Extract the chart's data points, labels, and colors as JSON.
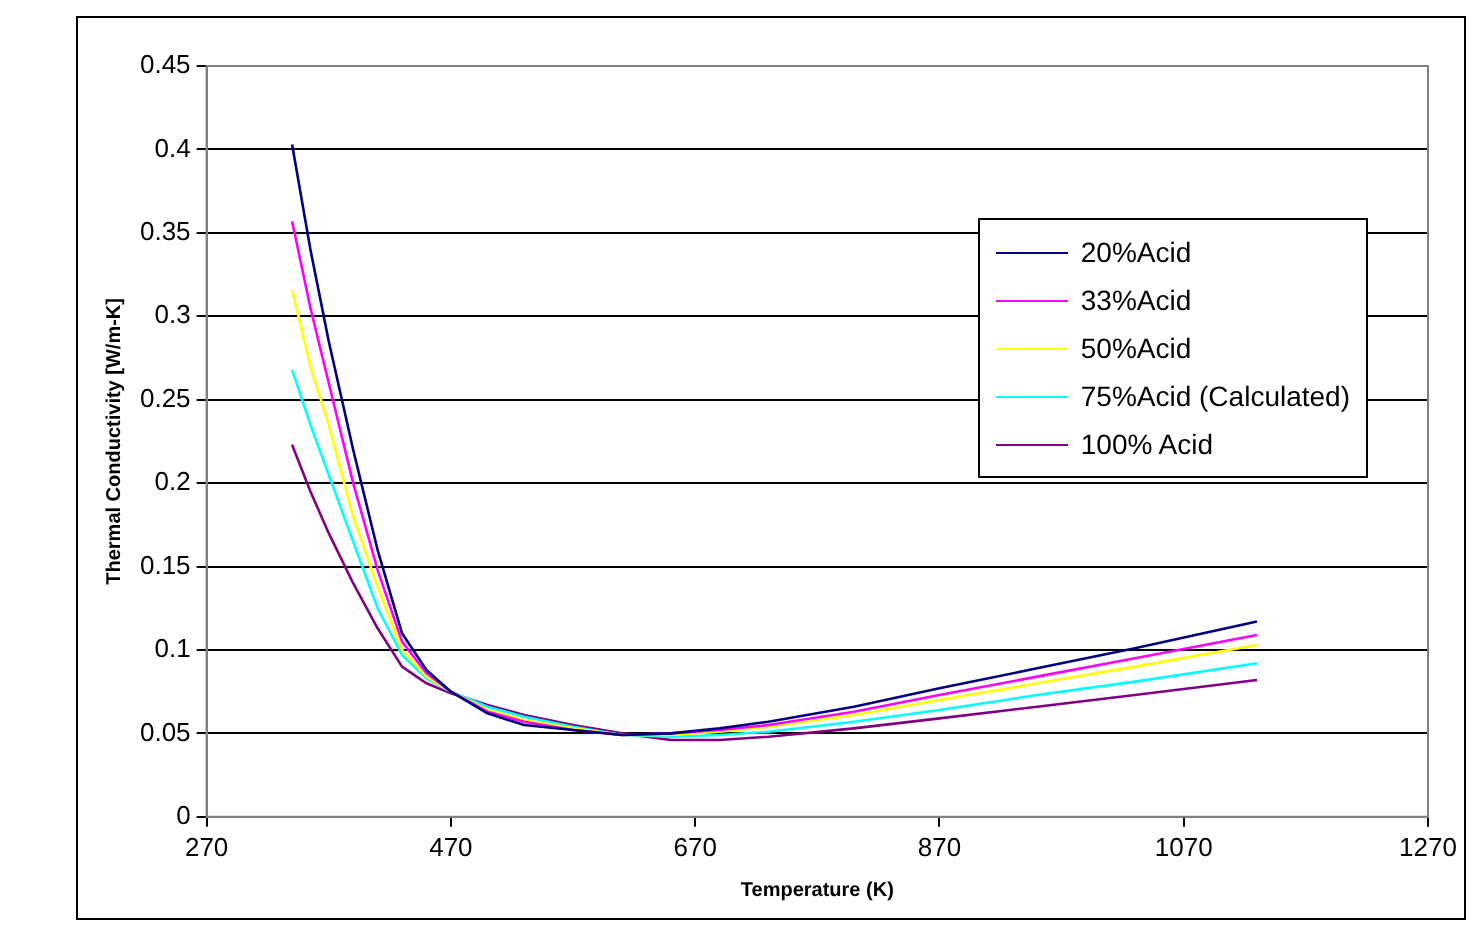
{
  "chart_data": {
    "type": "line",
    "xlabel": "Temperature (K)",
    "ylabel": "Thermal Conductivity [W/m-K]",
    "x": [
      340,
      355,
      370,
      390,
      410,
      430,
      450,
      470,
      500,
      530,
      570,
      610,
      650,
      690,
      730,
      800,
      870,
      950,
      1030,
      1130
    ],
    "series": [
      {
        "name": "20%Acid",
        "color": "#000080",
        "values": [
          0.403,
          0.34,
          0.285,
          0.22,
          0.16,
          0.11,
          0.088,
          0.075,
          0.062,
          0.055,
          0.052,
          0.049,
          0.05,
          0.053,
          0.057,
          0.066,
          0.077,
          0.089,
          0.101,
          0.117
        ]
      },
      {
        "name": "33%Acid",
        "color": "#ff00ff",
        "values": [
          0.357,
          0.305,
          0.26,
          0.2,
          0.148,
          0.105,
          0.086,
          0.075,
          0.063,
          0.057,
          0.052,
          0.049,
          0.05,
          0.052,
          0.055,
          0.063,
          0.073,
          0.084,
          0.095,
          0.109
        ]
      },
      {
        "name": "50%Acid",
        "color": "#ffff00",
        "values": [
          0.316,
          0.27,
          0.235,
          0.18,
          0.138,
          0.1,
          0.084,
          0.075,
          0.064,
          0.058,
          0.053,
          0.049,
          0.049,
          0.051,
          0.054,
          0.061,
          0.07,
          0.08,
          0.09,
          0.103
        ]
      },
      {
        "name": "75%Acid (Calculated)",
        "color": "#00ffff",
        "values": [
          0.268,
          0.235,
          0.205,
          0.165,
          0.125,
          0.097,
          0.083,
          0.075,
          0.066,
          0.06,
          0.054,
          0.049,
          0.048,
          0.049,
          0.051,
          0.057,
          0.064,
          0.073,
          0.081,
          0.092
        ]
      },
      {
        "name": "100% Acid",
        "color": "#800080",
        "values": [
          0.223,
          0.195,
          0.17,
          0.14,
          0.113,
          0.09,
          0.08,
          0.074,
          0.067,
          0.061,
          0.055,
          0.05,
          0.046,
          0.046,
          0.048,
          0.053,
          0.059,
          0.066,
          0.073,
          0.082
        ]
      }
    ],
    "xlim": [
      270,
      1270
    ],
    "xticks": [
      270,
      470,
      670,
      870,
      1070,
      1270
    ],
    "ylim": [
      0,
      0.45
    ],
    "yticks": [
      0,
      0.05,
      0.1,
      0.15,
      0.2,
      0.25,
      0.3,
      0.35,
      0.4,
      0.45
    ],
    "grid": "y",
    "legend": "top right",
    "marker": "none",
    "line_style": "solid"
  }
}
